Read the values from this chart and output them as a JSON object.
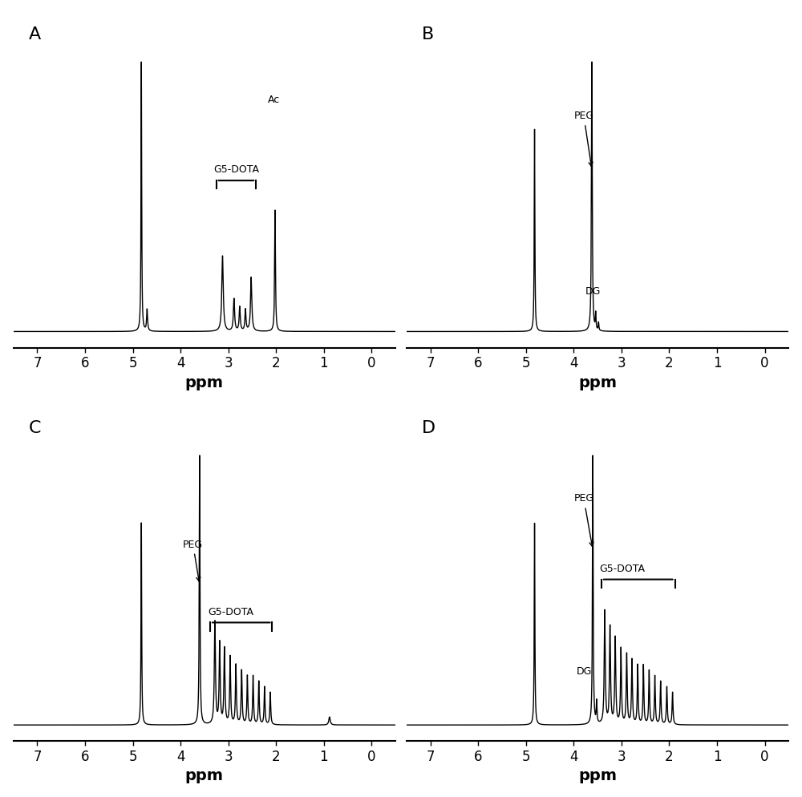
{
  "panels": [
    "A",
    "B",
    "C",
    "D"
  ],
  "xlim_left": 7.5,
  "xlim_right": -0.5,
  "xticks": [
    7,
    6,
    5,
    4,
    3,
    2,
    1,
    0
  ],
  "xlabel": "ppm",
  "background_color": "#ffffff",
  "line_color": "#000000",
  "line_width": 1.0,
  "figsize": [
    10.0,
    9.94
  ],
  "dpi": 100
}
